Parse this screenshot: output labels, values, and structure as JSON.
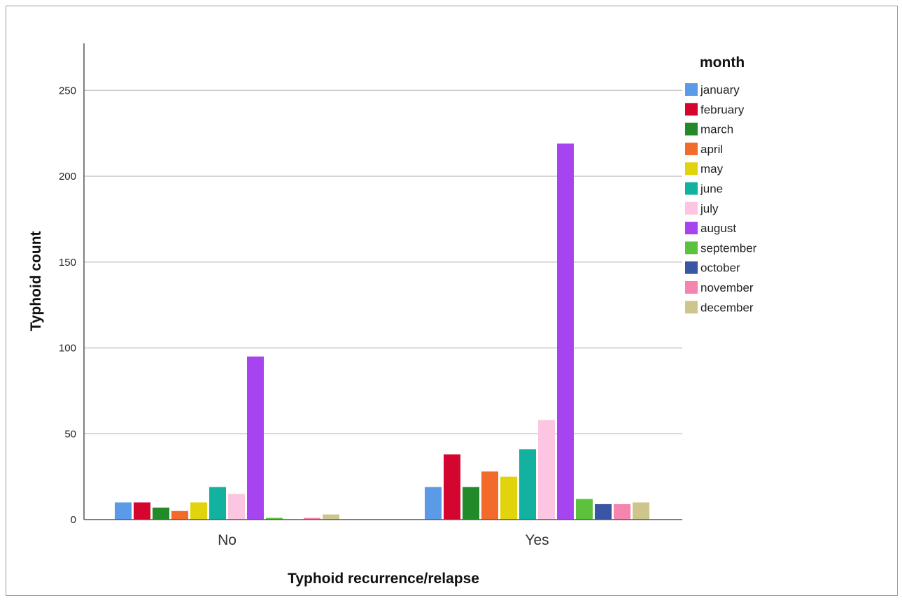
{
  "chart_data": {
    "type": "bar",
    "title": "",
    "xlabel": "Typhoid recurrence/relapse",
    "ylabel": "Typhoid count",
    "categories": [
      "No",
      "Yes"
    ],
    "ylim": [
      0,
      275
    ],
    "yticks": [
      0,
      50,
      100,
      150,
      200,
      250
    ],
    "grid": true,
    "legend": {
      "title": "month",
      "placement": "right"
    },
    "series": [
      {
        "name": "january",
        "color": "#5b9ae6",
        "values": [
          10,
          19
        ]
      },
      {
        "name": "february",
        "color": "#d4062f",
        "values": [
          10,
          38
        ]
      },
      {
        "name": "march",
        "color": "#238a2a",
        "values": [
          7,
          19
        ]
      },
      {
        "name": "april",
        "color": "#f26b2b",
        "values": [
          5,
          28
        ]
      },
      {
        "name": "may",
        "color": "#e2d40c",
        "values": [
          10,
          25
        ]
      },
      {
        "name": "june",
        "color": "#13b2a0",
        "values": [
          19,
          41
        ]
      },
      {
        "name": "july",
        "color": "#fcc6e2",
        "values": [
          15,
          58
        ]
      },
      {
        "name": "august",
        "color": "#a644f0",
        "values": [
          95,
          219
        ]
      },
      {
        "name": "september",
        "color": "#5cc23e",
        "values": [
          1,
          12
        ]
      },
      {
        "name": "october",
        "color": "#3a55a3",
        "values": [
          0,
          9
        ]
      },
      {
        "name": "november",
        "color": "#f585ae",
        "values": [
          1,
          9
        ]
      },
      {
        "name": "december",
        "color": "#cdc68c",
        "values": [
          3,
          10
        ]
      }
    ]
  }
}
